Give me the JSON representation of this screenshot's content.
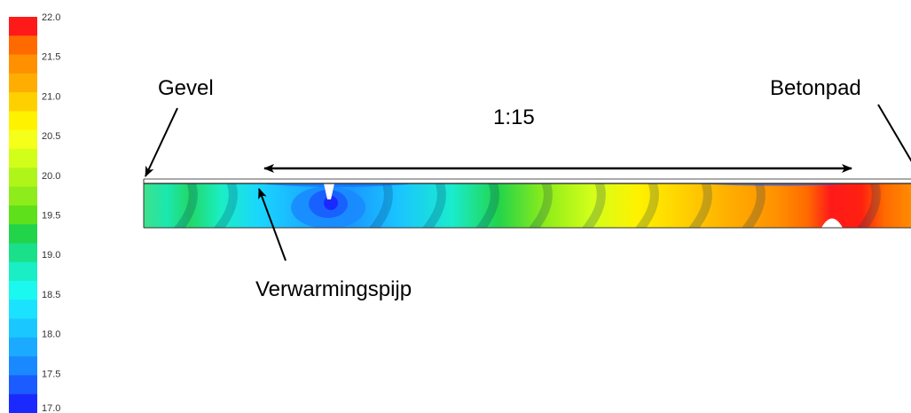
{
  "legend": {
    "ticks": [
      "22.0",
      "21.5",
      "21.0",
      "20.5",
      "20.0",
      "19.5",
      "19.0",
      "18.5",
      "18.0",
      "17.5",
      "17.0"
    ],
    "colors": [
      "#ff1a1a",
      "#ff6a00",
      "#ff9100",
      "#ffad00",
      "#ffd000",
      "#fff200",
      "#f4ff1a",
      "#d2ff1a",
      "#b0f51a",
      "#8eec1a",
      "#5ee01a",
      "#22d44a",
      "#1ae08a",
      "#1aeec4",
      "#1af8f0",
      "#1ae2ff",
      "#1ac8ff",
      "#1aaaff",
      "#1a88ff",
      "#1a5cff",
      "#1a2aff"
    ]
  },
  "labels": {
    "gevel": "Gevel",
    "betonpad": "Betonpad",
    "scale": "1:15",
    "verwarmingspijp": "Verwarmingspijp"
  }
}
